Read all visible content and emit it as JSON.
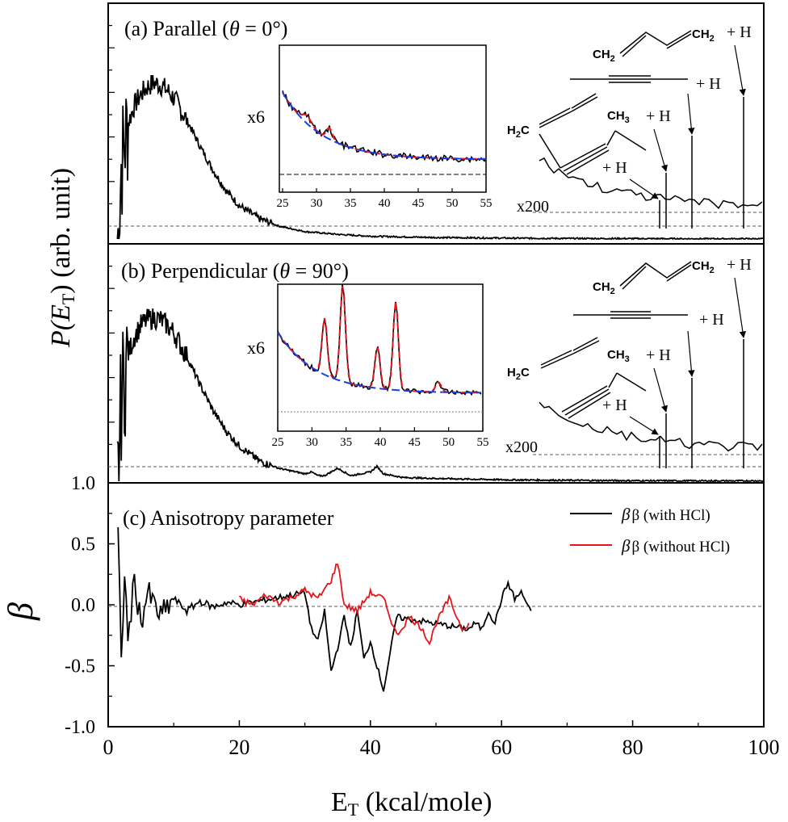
{
  "figure": {
    "ylabel_top": "P(E",
    "ylabel_top_sub": "T",
    "ylabel_top_tail": ") (arb. unit)",
    "ylabel_bottom": "β",
    "xlabel_main": "E",
    "xlabel_sub": "T",
    "xlabel_tail": " (kcal/mole)"
  },
  "panels": {
    "a": {
      "label": "(a) Parallel (",
      "theta": "θ",
      "label_tail": " = 0°)",
      "inset_factor": "x6",
      "zoom_factor": "x200"
    },
    "b": {
      "label": "(b) Perpendicular (",
      "theta": "θ",
      "label_tail": " = 90°)",
      "inset_factor": "x6",
      "zoom_factor": "x200"
    },
    "c": {
      "label": "(c) Anisotropy parameter",
      "legend_with": "β (with HCl)",
      "legend_without": "β (without HCl)"
    }
  },
  "molecules": {
    "ch2_left": "CH",
    "ch2_right": "CH",
    "two": "2",
    "h2c": "H",
    "h2c_tail": "C",
    "ch3": "CH",
    "three": "3",
    "plus_h": "+ H"
  },
  "colors": {
    "with_hcl": "#000000",
    "without_hcl": "#e8141b",
    "fit_red": "#e8141b",
    "fit_blue": "#1a3ee6"
  },
  "chart_data": [
    {
      "type": "line",
      "panel": "a",
      "xlim": [
        0,
        100
      ],
      "ylim": [
        0,
        1.0
      ],
      "x_ticks": [
        0,
        20,
        40,
        60,
        80,
        100
      ],
      "series": [
        {
          "x": [
            1.5,
            2,
            3,
            4,
            5,
            6,
            7,
            8,
            9,
            10,
            12,
            14,
            16,
            18,
            20,
            23,
            26,
            30,
            35,
            40,
            50,
            60,
            70,
            80,
            90,
            100
          ],
          "y": [
            0.0,
            0.4,
            0.62,
            0.72,
            0.78,
            0.82,
            0.84,
            0.83,
            0.8,
            0.76,
            0.64,
            0.5,
            0.37,
            0.26,
            0.18,
            0.11,
            0.07,
            0.04,
            0.025,
            0.015,
            0.008,
            0.005,
            0.003,
            0.002,
            0.001,
            0.001
          ]
        }
      ],
      "inset": {
        "xlim": [
          25,
          55
        ],
        "x_ticks": [
          25,
          30,
          35,
          40,
          45,
          50,
          55
        ]
      },
      "thresholds": [
        84,
        85,
        89,
        97
      ]
    },
    {
      "type": "line",
      "panel": "b",
      "xlim": [
        0,
        100
      ],
      "ylim": [
        0,
        1.0
      ],
      "series": [
        {
          "x": [
            1.5,
            2,
            3,
            4,
            5,
            6,
            7,
            8,
            9,
            10,
            12,
            14,
            16,
            18,
            20,
            23,
            26,
            30,
            31,
            32,
            33,
            35,
            37,
            40,
            41,
            42,
            45,
            50,
            60,
            70,
            80,
            90,
            100
          ],
          "y": [
            0.0,
            0.45,
            0.68,
            0.78,
            0.84,
            0.87,
            0.88,
            0.87,
            0.84,
            0.8,
            0.67,
            0.52,
            0.38,
            0.27,
            0.19,
            0.11,
            0.07,
            0.04,
            0.05,
            0.03,
            0.03,
            0.07,
            0.03,
            0.05,
            0.08,
            0.04,
            0.02,
            0.015,
            0.008,
            0.005,
            0.003,
            0.002,
            0.002
          ]
        }
      ],
      "inset": {
        "xlim": [
          25,
          55
        ],
        "x_ticks": [
          25,
          30,
          35,
          40,
          45,
          50,
          55
        ]
      },
      "thresholds": [
        84,
        85,
        89,
        97
      ]
    },
    {
      "type": "line",
      "panel": "c",
      "title": "(c) Anisotropy parameter",
      "xlim": [
        0,
        100
      ],
      "ylim": [
        -1.0,
        1.0
      ],
      "y_ticks": [
        "-1.0",
        "-0.5",
        "0.0",
        "0.5",
        "1.0"
      ],
      "x_ticks": [
        "0",
        "20",
        "40",
        "60",
        "80",
        "100"
      ],
      "series": [
        {
          "name": "β (with HCl)",
          "x": [
            1.5,
            2,
            2.5,
            3,
            4,
            5,
            6,
            8,
            10,
            12,
            14,
            16,
            18,
            20,
            30,
            31,
            32,
            33,
            34,
            35,
            36,
            37,
            38,
            39,
            40,
            41,
            42,
            43,
            44,
            55,
            56,
            57,
            58,
            59,
            60,
            61,
            62,
            63,
            64.5
          ],
          "y": [
            0.6,
            -0.5,
            0.3,
            -0.3,
            0.2,
            -0.15,
            0.1,
            -0.1,
            0.05,
            -0.05,
            0.03,
            -0.02,
            0.02,
            0.0,
            0.1,
            -0.2,
            -0.3,
            -0.05,
            -0.55,
            -0.35,
            -0.1,
            -0.35,
            -0.05,
            -0.45,
            -0.3,
            -0.5,
            -0.7,
            -0.4,
            -0.1,
            -0.2,
            -0.15,
            -0.2,
            -0.05,
            -0.15,
            0.05,
            0.18,
            0.05,
            0.1,
            -0.05
          ]
        },
        {
          "name": "β (without HCl)",
          "x": [
            20,
            22,
            24,
            26,
            28,
            30,
            32,
            34,
            35,
            36,
            38,
            40,
            42,
            44,
            46,
            48,
            49,
            50,
            52,
            54,
            55
          ],
          "y": [
            0.05,
            0.0,
            0.08,
            0.02,
            0.06,
            0.12,
            0.05,
            0.2,
            0.35,
            0.0,
            -0.05,
            0.1,
            0.05,
            -0.25,
            -0.1,
            -0.2,
            -0.32,
            -0.15,
            0.05,
            -0.2,
            -0.15
          ]
        }
      ]
    }
  ]
}
